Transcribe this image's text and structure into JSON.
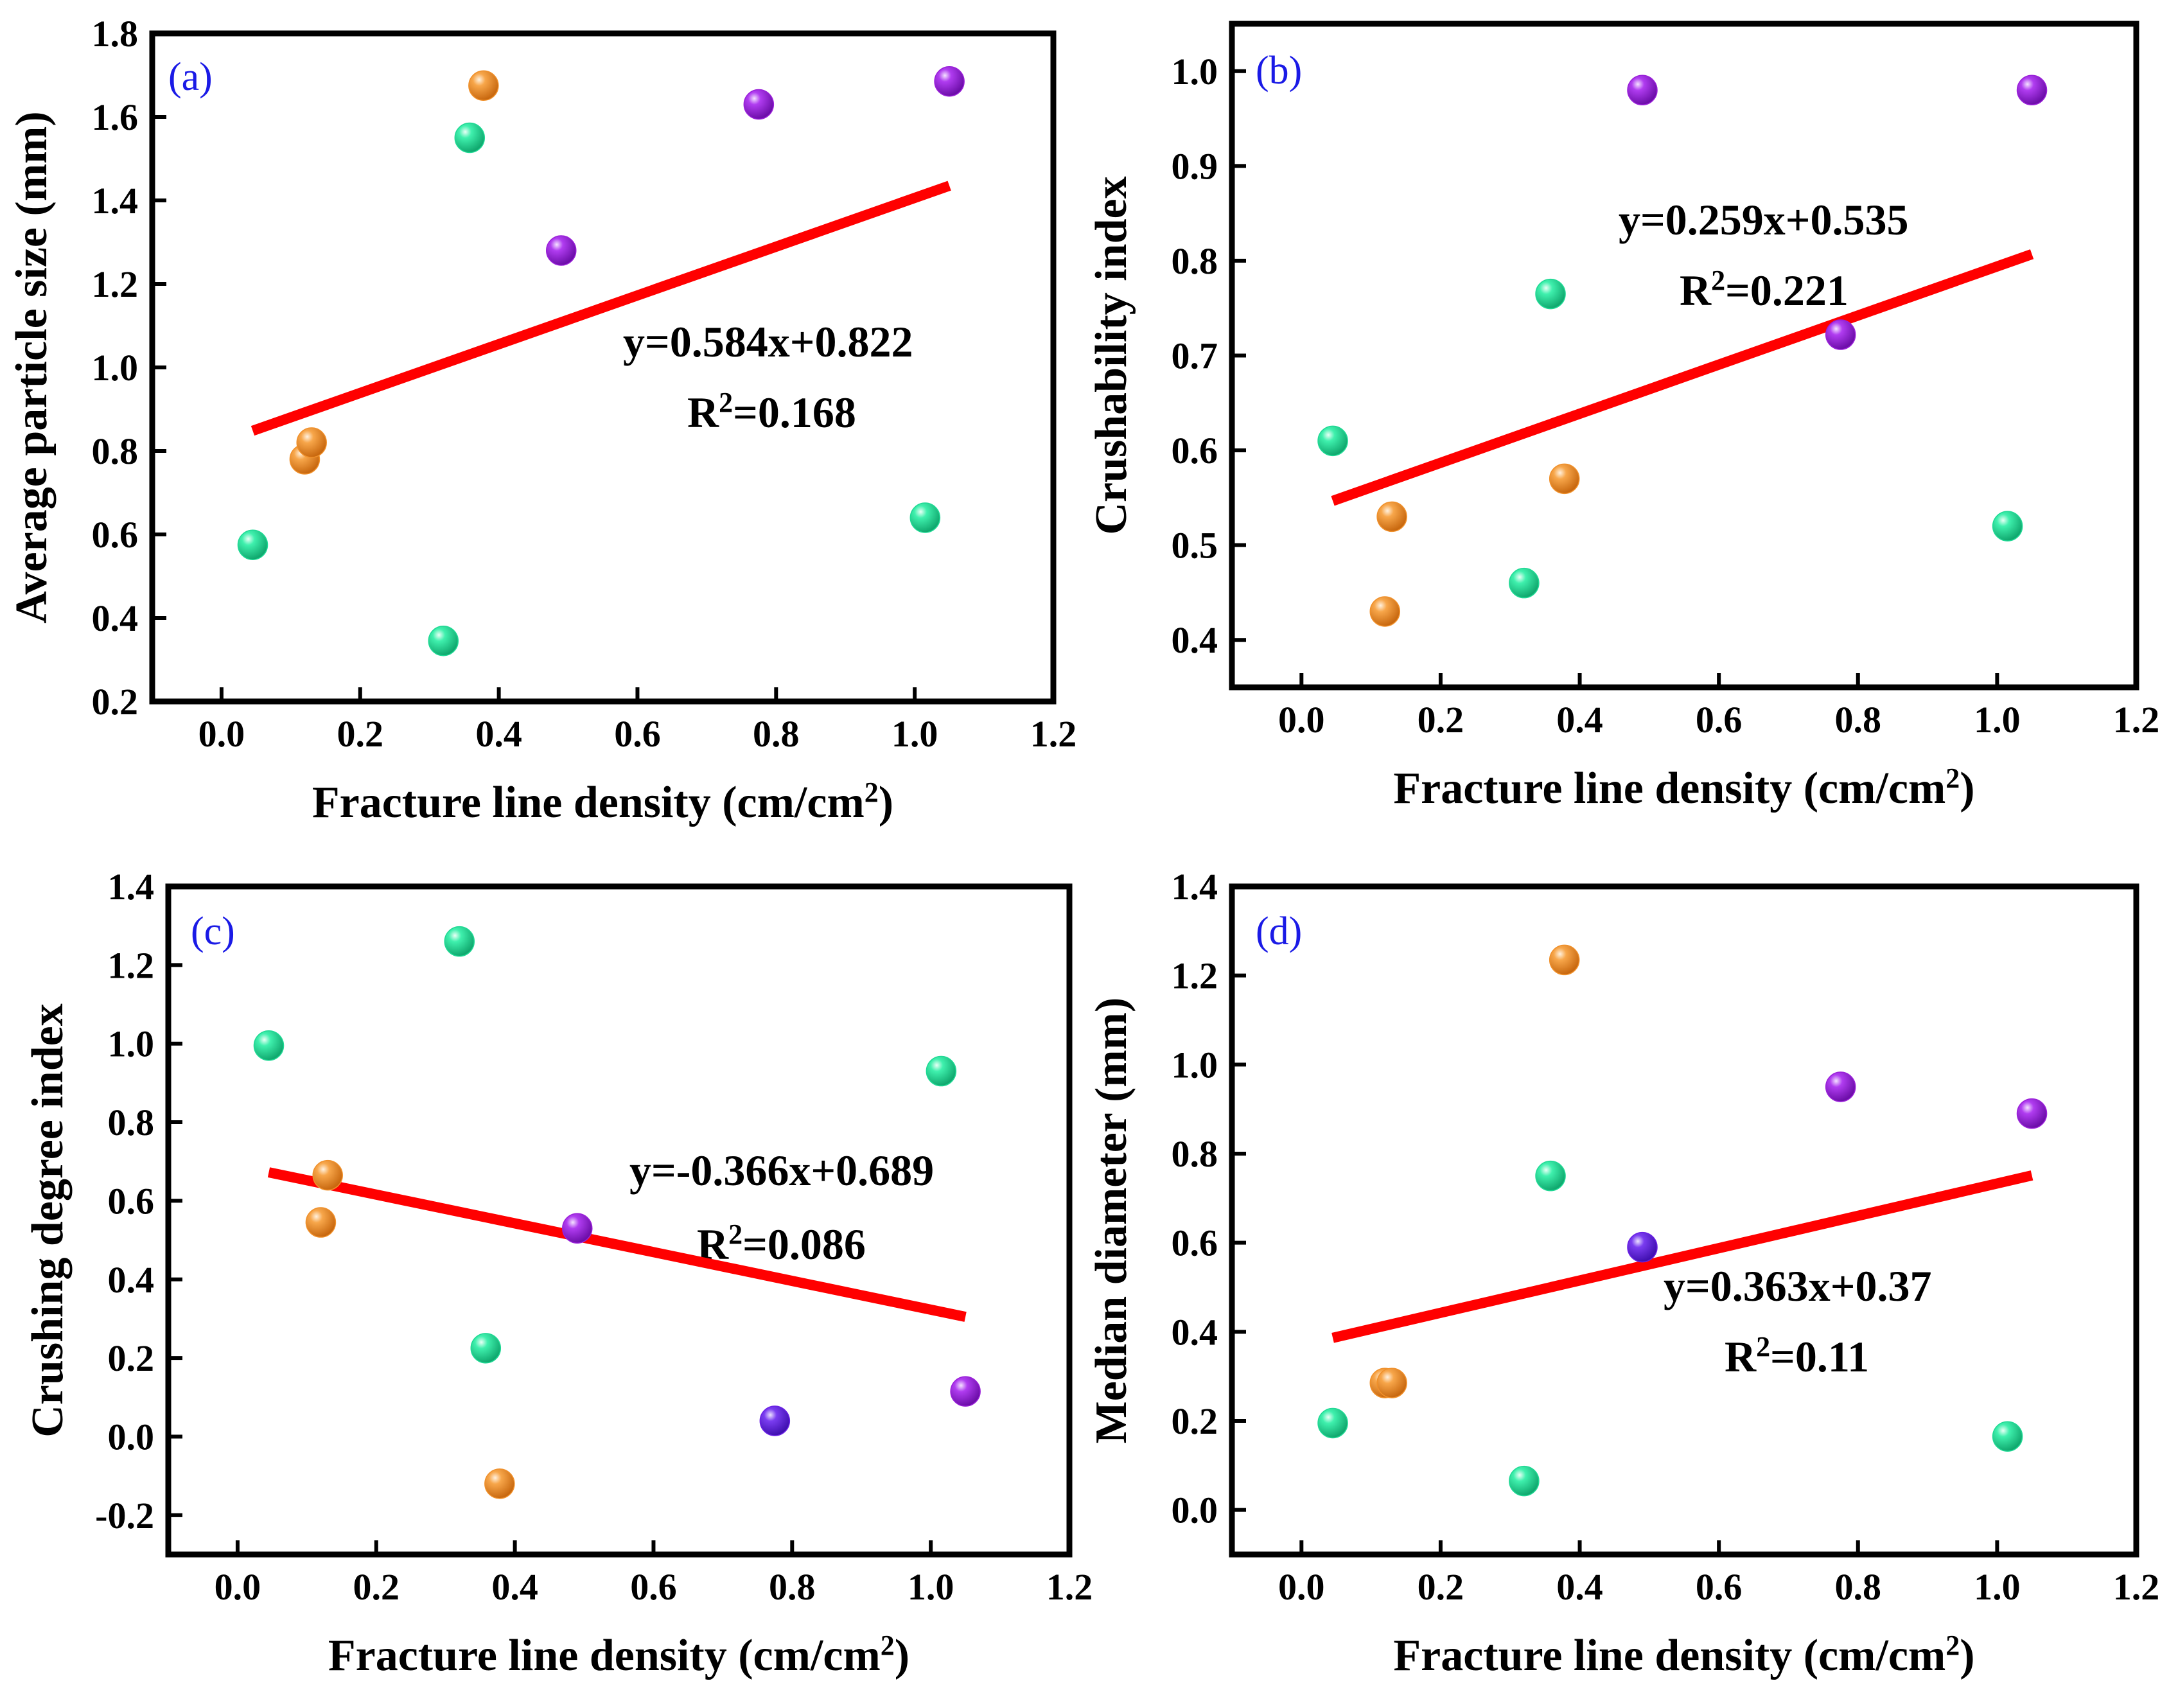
{
  "figure": {
    "colors": {
      "fit_line": "#ff0000",
      "group_green": "#1fd994",
      "group_orange": "#f0902a",
      "group_purple": "#9a1fd9",
      "group_blue_violet": "#6a1fe6",
      "panel_label": "#1a1ae6"
    }
  },
  "chart_data": [
    {
      "id": "a",
      "type": "scatter",
      "panel_label": "(a)",
      "xlabel": "Fracture line density (cm/cm",
      "xlabel_sup": "2",
      "xlabel_tail": ")",
      "ylabel": "Average particle size (mm)",
      "xlim": [
        -0.1,
        1.2
      ],
      "ylim": [
        0.2,
        1.8
      ],
      "xticks": [
        0.0,
        0.2,
        0.4,
        0.6,
        0.8,
        1.0,
        1.2
      ],
      "xtick_labels": [
        "0.0",
        "0.2",
        "0.4",
        "0.6",
        "0.8",
        "1.0",
        "1.2"
      ],
      "yticks": [
        0.2,
        0.4,
        0.6,
        0.8,
        1.0,
        1.2,
        1.4,
        1.6,
        1.8
      ],
      "ytick_labels": [
        "0.2",
        "0.4",
        "0.6",
        "0.8",
        "1.0",
        "1.2",
        "1.4",
        "1.6",
        "1.8"
      ],
      "points": [
        {
          "x": 0.045,
          "y": 0.575,
          "group": "green"
        },
        {
          "x": 0.32,
          "y": 0.345,
          "group": "green"
        },
        {
          "x": 0.358,
          "y": 1.55,
          "group": "green"
        },
        {
          "x": 1.015,
          "y": 0.64,
          "group": "green"
        },
        {
          "x": 0.12,
          "y": 0.78,
          "group": "orange"
        },
        {
          "x": 0.13,
          "y": 0.82,
          "group": "orange"
        },
        {
          "x": 0.378,
          "y": 1.675,
          "group": "orange"
        },
        {
          "x": 0.49,
          "y": 1.28,
          "group": "purple"
        },
        {
          "x": 0.775,
          "y": 1.63,
          "group": "purple"
        },
        {
          "x": 1.05,
          "y": 1.685,
          "group": "purple"
        }
      ],
      "fit": {
        "slope": 0.584,
        "intercept": 0.822,
        "x_range": [
          0.045,
          1.05
        ]
      },
      "equation": "y=0.584x+0.822",
      "r2_prefix": "R",
      "r2_sup": "2",
      "r2_value": "=0.168"
    },
    {
      "id": "b",
      "type": "scatter",
      "panel_label": "(b)",
      "xlabel": "Fracture line density (cm/cm",
      "xlabel_sup": "2",
      "xlabel_tail": ")",
      "ylabel": "Crushability index",
      "xlim": [
        -0.1,
        1.2
      ],
      "ylim": [
        0.35,
        1.05
      ],
      "xticks": [
        0.0,
        0.2,
        0.4,
        0.6,
        0.8,
        1.0,
        1.2
      ],
      "xtick_labels": [
        "0.0",
        "0.2",
        "0.4",
        "0.6",
        "0.8",
        "1.0",
        "1.2"
      ],
      "yticks": [
        0.4,
        0.5,
        0.6,
        0.7,
        0.8,
        0.9,
        1.0
      ],
      "ytick_labels": [
        "0.4",
        "0.5",
        "0.6",
        "0.7",
        "0.8",
        "0.9",
        "1.0"
      ],
      "points": [
        {
          "x": 0.045,
          "y": 0.61,
          "group": "green"
        },
        {
          "x": 0.32,
          "y": 0.46,
          "group": "green"
        },
        {
          "x": 0.358,
          "y": 0.765,
          "group": "green"
        },
        {
          "x": 1.015,
          "y": 0.52,
          "group": "green"
        },
        {
          "x": 0.12,
          "y": 0.43,
          "group": "orange"
        },
        {
          "x": 0.13,
          "y": 0.53,
          "group": "orange"
        },
        {
          "x": 0.378,
          "y": 0.57,
          "group": "orange"
        },
        {
          "x": 0.49,
          "y": 0.98,
          "group": "purple"
        },
        {
          "x": 0.775,
          "y": 0.722,
          "group": "purple"
        },
        {
          "x": 1.05,
          "y": 0.98,
          "group": "purple"
        }
      ],
      "fit": {
        "slope": 0.259,
        "intercept": 0.535,
        "x_range": [
          0.045,
          1.05
        ]
      },
      "equation": "y=0.259x+0.535",
      "r2_prefix": "R",
      "r2_sup": "2",
      "r2_value": "=0.221"
    },
    {
      "id": "c",
      "type": "scatter",
      "panel_label": "(c)",
      "xlabel": "Fracture line density (cm/cm",
      "xlabel_sup": "2",
      "xlabel_tail": ")",
      "ylabel": "Crushing degree index",
      "xlim": [
        -0.1,
        1.2
      ],
      "ylim": [
        -0.3,
        1.4
      ],
      "xticks": [
        0.0,
        0.2,
        0.4,
        0.6,
        0.8,
        1.0,
        1.2
      ],
      "xtick_labels": [
        "0.0",
        "0.2",
        "0.4",
        "0.6",
        "0.8",
        "1.0",
        "1.2"
      ],
      "yticks": [
        -0.2,
        0.0,
        0.2,
        0.4,
        0.6,
        0.8,
        1.0,
        1.2,
        1.4
      ],
      "ytick_labels": [
        "-0.2",
        "0.0",
        "0.2",
        "0.4",
        "0.6",
        "0.8",
        "1.0",
        "1.2",
        "1.4"
      ],
      "points": [
        {
          "x": 0.045,
          "y": 0.995,
          "group": "green"
        },
        {
          "x": 0.32,
          "y": 1.26,
          "group": "green"
        },
        {
          "x": 0.358,
          "y": 0.225,
          "group": "green"
        },
        {
          "x": 1.015,
          "y": 0.93,
          "group": "green"
        },
        {
          "x": 0.12,
          "y": 0.545,
          "group": "orange"
        },
        {
          "x": 0.13,
          "y": 0.665,
          "group": "orange"
        },
        {
          "x": 0.378,
          "y": -0.12,
          "group": "orange"
        },
        {
          "x": 0.49,
          "y": 0.53,
          "group": "purple"
        },
        {
          "x": 0.775,
          "y": 0.04,
          "group": "blue_violet"
        },
        {
          "x": 1.05,
          "y": 0.115,
          "group": "purple"
        }
      ],
      "fit": {
        "slope": -0.366,
        "intercept": 0.689,
        "x_range": [
          0.045,
          1.05
        ]
      },
      "equation": "y=-0.366x+0.689",
      "r2_prefix": "R",
      "r2_sup": "2",
      "r2_value": "=0.086"
    },
    {
      "id": "d",
      "type": "scatter",
      "panel_label": "(d)",
      "xlabel": "Fracture line density (cm/cm",
      "xlabel_sup": "2",
      "xlabel_tail": ")",
      "ylabel": "Median diameter (mm)",
      "xlim": [
        -0.1,
        1.2
      ],
      "ylim": [
        -0.1,
        1.4
      ],
      "xticks": [
        0.0,
        0.2,
        0.4,
        0.6,
        0.8,
        1.0,
        1.2
      ],
      "xtick_labels": [
        "0.0",
        "0.2",
        "0.4",
        "0.6",
        "0.8",
        "1.0",
        "1.2"
      ],
      "yticks": [
        0.0,
        0.2,
        0.4,
        0.6,
        0.8,
        1.0,
        1.2,
        1.4
      ],
      "ytick_labels": [
        "0.0",
        "0.2",
        "0.4",
        "0.6",
        "0.8",
        "1.0",
        "1.2",
        "1.4"
      ],
      "points": [
        {
          "x": 0.045,
          "y": 0.195,
          "group": "green"
        },
        {
          "x": 0.32,
          "y": 0.065,
          "group": "green"
        },
        {
          "x": 0.358,
          "y": 0.75,
          "group": "green"
        },
        {
          "x": 1.015,
          "y": 0.165,
          "group": "green"
        },
        {
          "x": 0.12,
          "y": 0.285,
          "group": "orange"
        },
        {
          "x": 0.13,
          "y": 0.285,
          "group": "orange"
        },
        {
          "x": 0.378,
          "y": 1.235,
          "group": "orange"
        },
        {
          "x": 0.49,
          "y": 0.59,
          "group": "blue_violet"
        },
        {
          "x": 0.775,
          "y": 0.95,
          "group": "purple"
        },
        {
          "x": 1.05,
          "y": 0.89,
          "group": "purple"
        }
      ],
      "fit": {
        "slope": 0.363,
        "intercept": 0.37,
        "x_range": [
          0.045,
          1.05
        ]
      },
      "equation": "y=0.363x+0.37",
      "r2_prefix": "R",
      "r2_sup": "2",
      "r2_value": "=0.11"
    }
  ]
}
